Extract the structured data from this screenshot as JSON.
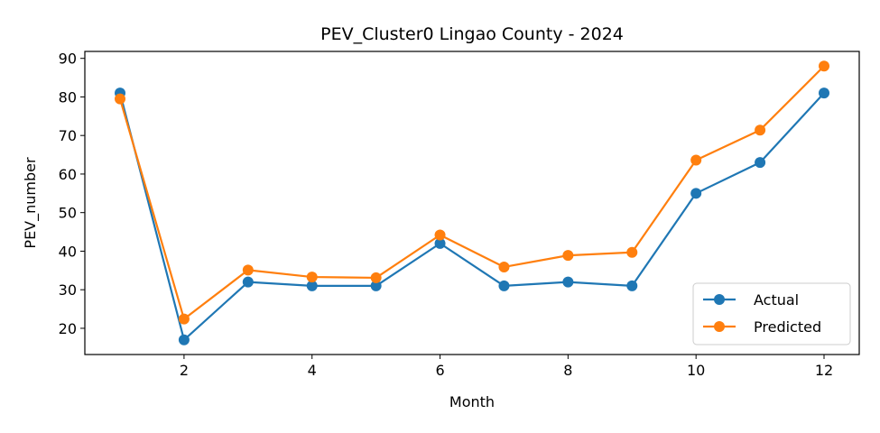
{
  "chart_data": {
    "type": "line",
    "title": "PEV_Cluster0 Lingao County - 2024",
    "xlabel": "Month",
    "ylabel": "PEV_number",
    "x": [
      1,
      2,
      3,
      4,
      5,
      6,
      7,
      8,
      9,
      10,
      11,
      12
    ],
    "xlim": [
      0.45,
      12.55
    ],
    "ylim": [
      13.2,
      91.8
    ],
    "xticks": [
      2,
      4,
      6,
      8,
      10,
      12
    ],
    "yticks": [
      20,
      30,
      40,
      50,
      60,
      70,
      80,
      90
    ],
    "grid": false,
    "legend_position": "lower-right",
    "series": [
      {
        "name": "Actual",
        "color": "#1f77b4",
        "values": [
          81,
          17,
          32,
          31,
          31,
          42,
          31,
          32,
          31,
          55,
          63,
          81
        ]
      },
      {
        "name": "Predicted",
        "color": "#ff7f0e",
        "values": [
          79.5,
          22.4,
          35.1,
          33.3,
          33.1,
          44.2,
          35.9,
          38.9,
          39.7,
          63.6,
          71.4,
          88
        ]
      }
    ]
  }
}
